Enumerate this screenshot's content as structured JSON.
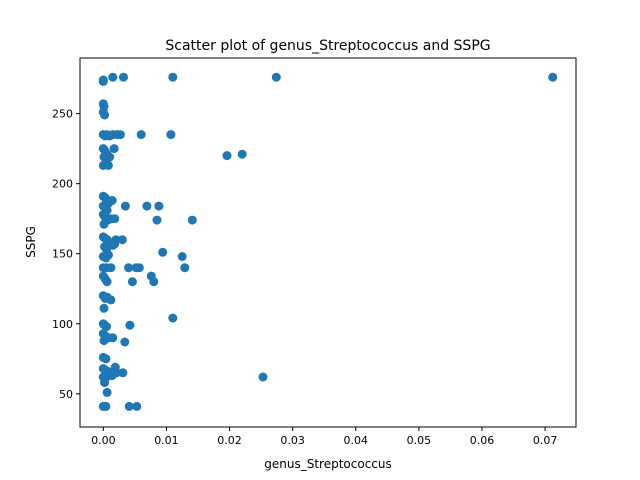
{
  "chart_data": {
    "type": "scatter",
    "title": "Scatter plot of genus_Streptococcus and SSPG",
    "xlabel": "genus_Streptococcus",
    "ylabel": "SSPG",
    "xlim": [
      -0.0037,
      0.0749
    ],
    "ylim": [
      26.3,
      289.7
    ],
    "xticks": [
      0.0,
      0.01,
      0.02,
      0.03,
      0.04,
      0.05,
      0.06,
      0.07
    ],
    "xtick_labels": [
      "0.00",
      "0.01",
      "0.02",
      "0.03",
      "0.04",
      "0.05",
      "0.06",
      "0.07"
    ],
    "yticks": [
      50,
      100,
      150,
      200,
      250
    ],
    "ytick_labels": [
      "50",
      "100",
      "150",
      "200",
      "250"
    ],
    "grid": false,
    "marker_color": "#1f77b4",
    "points": [
      [
        0.0,
        274
      ],
      [
        0.0,
        273
      ],
      [
        0.0015,
        276
      ],
      [
        0.0032,
        276
      ],
      [
        0.011,
        276
      ],
      [
        0.0274,
        276
      ],
      [
        0.0712,
        276
      ],
      [
        0.0,
        257
      ],
      [
        0.0001,
        255
      ],
      [
        0.0,
        251
      ],
      [
        0.0002,
        249
      ],
      [
        0.0,
        235
      ],
      [
        0.0003,
        234
      ],
      [
        0.0006,
        235
      ],
      [
        0.001,
        234
      ],
      [
        0.0015,
        235
      ],
      [
        0.0022,
        235
      ],
      [
        0.0027,
        235
      ],
      [
        0.006,
        235
      ],
      [
        0.0107,
        235
      ],
      [
        0.0,
        225
      ],
      [
        0.0003,
        223
      ],
      [
        0.0006,
        221
      ],
      [
        0.0017,
        225
      ],
      [
        0.0001,
        219
      ],
      [
        0.0005,
        217
      ],
      [
        0.001,
        219
      ],
      [
        0.0,
        213
      ],
      [
        0.0008,
        213
      ],
      [
        0.0196,
        220
      ],
      [
        0.022,
        221
      ],
      [
        0.0,
        191
      ],
      [
        0.0003,
        190
      ],
      [
        0.0005,
        188
      ],
      [
        0.0008,
        186
      ],
      [
        0.0014,
        188
      ],
      [
        0.0,
        184
      ],
      [
        0.0006,
        181
      ],
      [
        0.0035,
        184
      ],
      [
        0.0069,
        184
      ],
      [
        0.0088,
        184
      ],
      [
        0.0,
        178
      ],
      [
        0.0003,
        176
      ],
      [
        0.0007,
        174
      ],
      [
        0.0012,
        175
      ],
      [
        0.0018,
        175
      ],
      [
        0.0001,
        171
      ],
      [
        0.0085,
        174
      ],
      [
        0.0141,
        174
      ],
      [
        0.0,
        162
      ],
      [
        0.0003,
        161
      ],
      [
        0.0006,
        160
      ],
      [
        0.001,
        158
      ],
      [
        0.0015,
        156
      ],
      [
        0.002,
        160
      ],
      [
        0.003,
        160
      ],
      [
        0.0018,
        157
      ],
      [
        0.0002,
        155
      ],
      [
        0.0005,
        153
      ],
      [
        0.0094,
        151
      ],
      [
        0.0,
        148
      ],
      [
        0.0004,
        147
      ],
      [
        0.0008,
        149
      ],
      [
        0.0125,
        148
      ],
      [
        0.0,
        140
      ],
      [
        0.0005,
        140
      ],
      [
        0.0012,
        140
      ],
      [
        0.004,
        140
      ],
      [
        0.0052,
        140
      ],
      [
        0.0057,
        140
      ],
      [
        0.0129,
        140
      ],
      [
        0.0,
        134
      ],
      [
        0.0003,
        132
      ],
      [
        0.0006,
        130
      ],
      [
        0.0046,
        130
      ],
      [
        0.0076,
        134
      ],
      [
        0.008,
        130
      ],
      [
        0.0,
        120
      ],
      [
        0.0003,
        118
      ],
      [
        0.0006,
        119
      ],
      [
        0.0012,
        117
      ],
      [
        0.0001,
        111
      ],
      [
        0.011,
        104
      ],
      [
        0.0,
        100
      ],
      [
        0.0002,
        99
      ],
      [
        0.0005,
        98
      ],
      [
        0.0042,
        99
      ],
      [
        0.0,
        93
      ],
      [
        0.0004,
        91
      ],
      [
        0.0008,
        90
      ],
      [
        0.0015,
        90
      ],
      [
        0.0001,
        88
      ],
      [
        0.0034,
        87
      ],
      [
        0.0,
        76
      ],
      [
        0.0004,
        75
      ],
      [
        0.0,
        68
      ],
      [
        0.0003,
        67
      ],
      [
        0.0007,
        66
      ],
      [
        0.0011,
        65
      ],
      [
        0.0016,
        66
      ],
      [
        0.0019,
        69
      ],
      [
        0.0021,
        65
      ],
      [
        0.0014,
        63
      ],
      [
        0.0031,
        65
      ],
      [
        0.0,
        62
      ],
      [
        0.0005,
        62
      ],
      [
        0.0002,
        58
      ],
      [
        0.0253,
        62
      ],
      [
        0.0006,
        51
      ],
      [
        0.0,
        41
      ],
      [
        0.0004,
        41
      ],
      [
        0.0041,
        41
      ],
      [
        0.0053,
        41
      ]
    ]
  }
}
